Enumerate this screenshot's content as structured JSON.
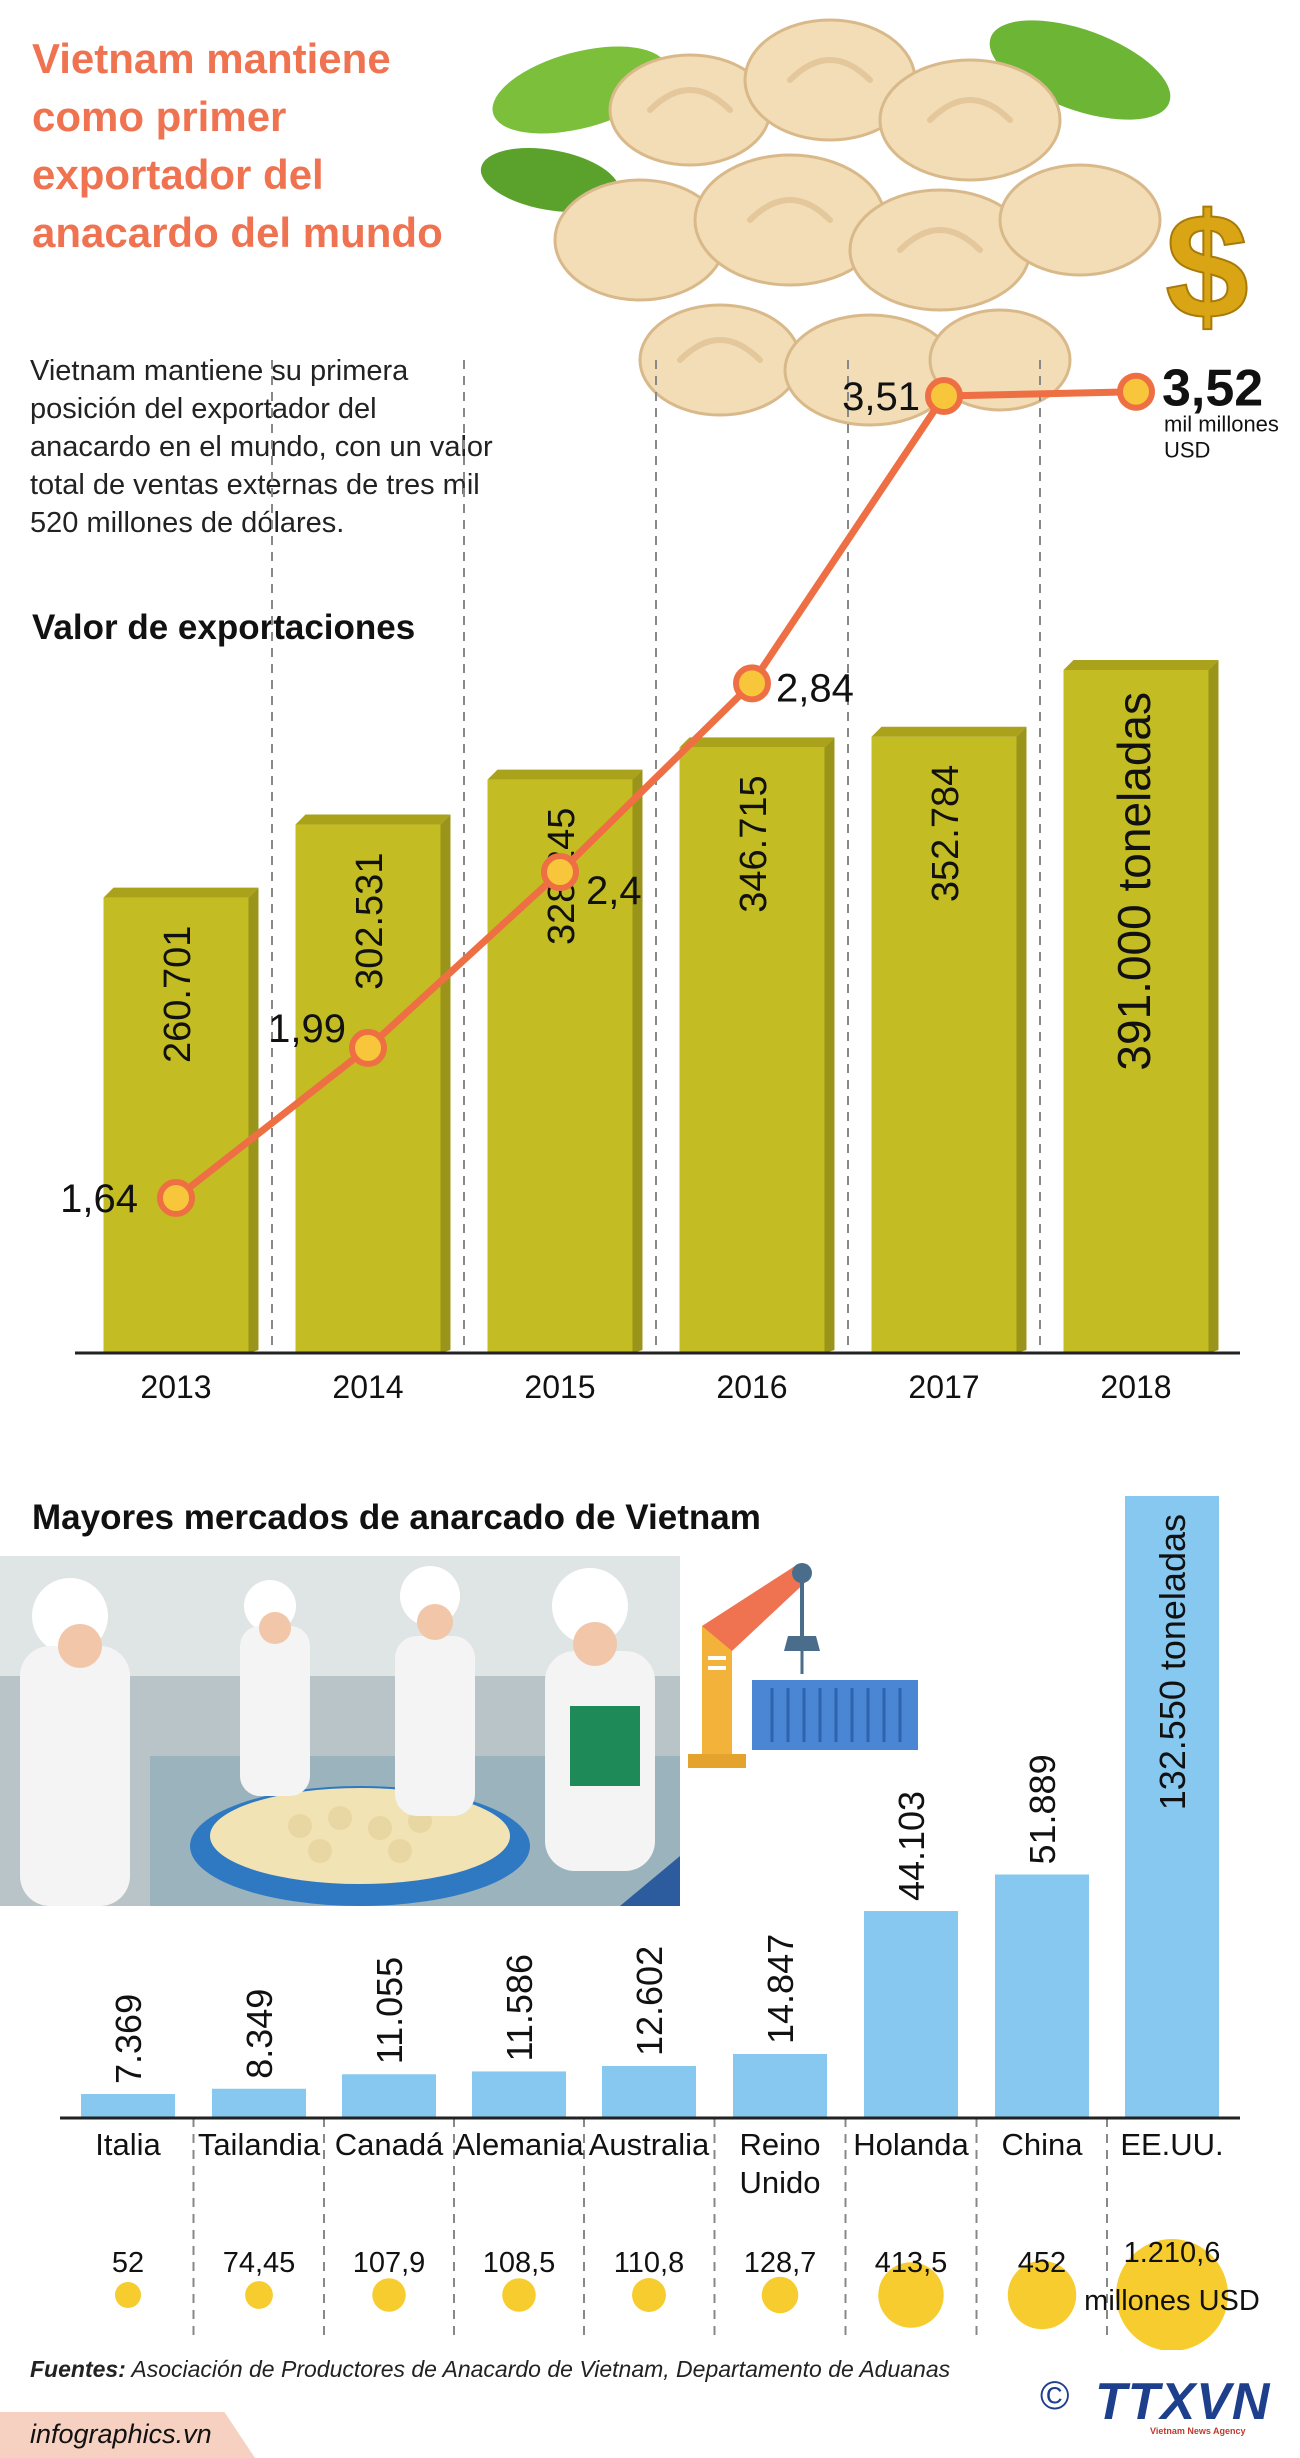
{
  "title": "Vietnam mantiene como primer exportador del anacardo del mundo",
  "intro": "Vietnam mantiene su primera posición del exportador del anacardo en el mundo, con un valor total de ventas externas de tres mil 520 millones de dólares.",
  "export_section_title": "Valor de exportaciones",
  "markets_section_title": "Mayores mercados de anarcado de Vietnam",
  "value_unit_line1": "mil millones",
  "value_unit_line2": "USD",
  "volume_unit": "toneladas",
  "markets_value_unit": "millones USD",
  "colors": {
    "accent": "#ef7350",
    "bar_olive": "#c3bc22",
    "bar_olive_side": "#9a941a",
    "bar_blue": "#86c8ef",
    "coin_yellow": "#f7cc2e",
    "line_orange": "#ef6f44"
  },
  "icons": [
    "dollar-sign-icon",
    "crane-icon",
    "container-icon",
    "cashew-photo",
    "factory-photo"
  ],
  "source": {
    "label": "Fuentes:",
    "text": "Asociación de Productores de Anacardo de Vietnam, Departamento de Aduanas"
  },
  "site": "infographics.vn",
  "agency": {
    "copyright": "©",
    "name": "TTXVN",
    "subtitle": "Vietnam News Agency"
  },
  "chart_data": [
    {
      "type": "bar",
      "title": "Valor de exportaciones",
      "categories": [
        "2013",
        "2014",
        "2015",
        "2016",
        "2017",
        "2018"
      ],
      "series": [
        {
          "name": "toneladas",
          "values": [
            260701,
            302531,
            328245,
            346715,
            352784,
            391000
          ],
          "labels": [
            "260.701",
            "302.531",
            "328.245",
            "346.715",
            "352.784",
            "391.000"
          ]
        },
        {
          "name": "mil millones USD",
          "type": "line",
          "values": [
            1.64,
            1.99,
            2.4,
            2.84,
            3.51,
            3.52
          ],
          "labels": [
            "1,64",
            "1,99",
            "2,4",
            "2,84",
            "3,51",
            "3,52"
          ]
        }
      ]
    },
    {
      "type": "bar",
      "title": "Mayores mercados de anarcado de Vietnam",
      "categories": [
        "Italia",
        "Tailandia",
        "Canadá",
        "Alemania",
        "Australia",
        "Reino Unido",
        "Holanda",
        "China",
        "EE.UU."
      ],
      "series": [
        {
          "name": "toneladas",
          "values": [
            7369,
            8349,
            11055,
            11586,
            12602,
            14847,
            44103,
            51889,
            132550
          ],
          "labels": [
            "7.369",
            "8.349",
            "11.055",
            "11.586",
            "12.602",
            "14.847",
            "44.103",
            "51.889",
            "132.550"
          ]
        },
        {
          "name": "millones USD",
          "values": [
            52,
            74.45,
            107.9,
            108.5,
            110.8,
            128.7,
            413.5,
            452,
            1210.6
          ],
          "labels": [
            "52",
            "74,45",
            "107,9",
            "108,5",
            "110,8",
            "128,7",
            "413,5",
            "452",
            "1.210,6"
          ]
        }
      ]
    }
  ]
}
